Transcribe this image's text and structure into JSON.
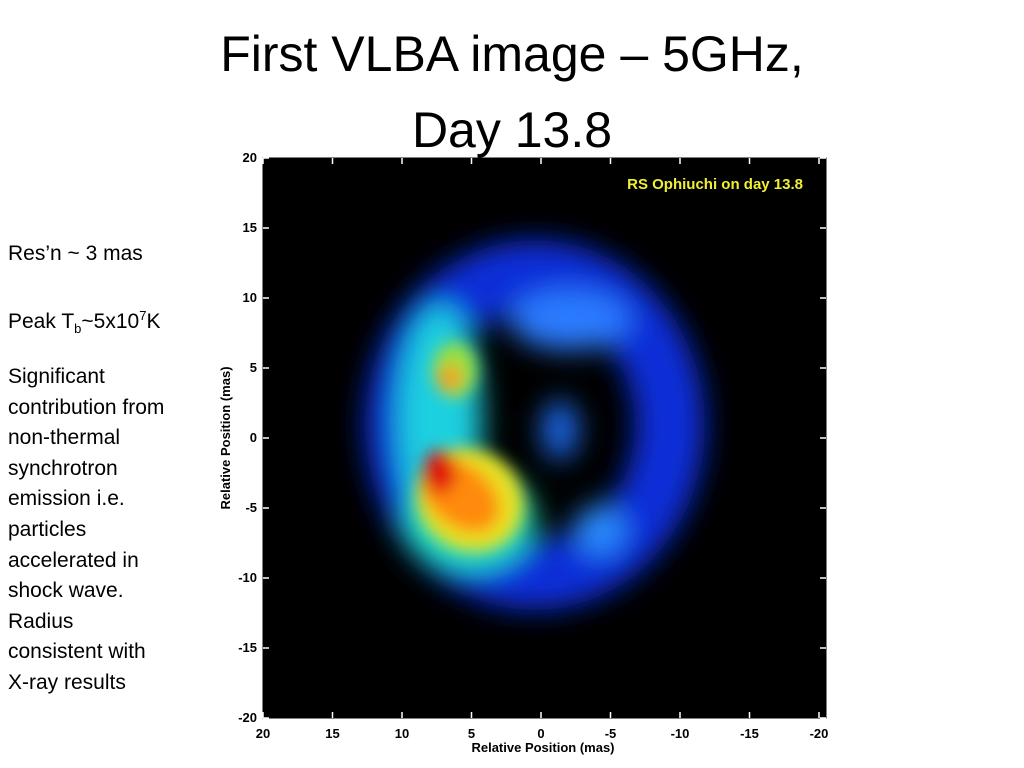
{
  "title": {
    "lines": [
      "First VLBA image – 5GHz,",
      "Day 13.8"
    ]
  },
  "notes": {
    "resolution": "Res’n ~ 3 mas",
    "peak": {
      "parts": [
        "Peak T",
        "b",
        "~5x10",
        "7",
        "K"
      ]
    },
    "description_lines": [
      "Significant",
      "contribution from",
      "non-thermal",
      "synchrotron",
      "emission i.e.",
      "particles",
      "accelerated in",
      "shock wave.",
      "Radius",
      "consistent with",
      "X-ray results"
    ]
  },
  "image": {
    "caption": "RS Ophiuchi on day 13.8",
    "x_label": "Relative Position (mas)",
    "y_label": "Relative Position (mas)",
    "xlim": [
      20,
      -20
    ],
    "ylim": [
      -20,
      20
    ],
    "xticks": [
      20,
      15,
      10,
      5,
      0,
      -5,
      -10,
      -15,
      -20
    ],
    "yticks": [
      20,
      15,
      10,
      5,
      0,
      -5,
      -10,
      -15,
      -20
    ]
  }
}
